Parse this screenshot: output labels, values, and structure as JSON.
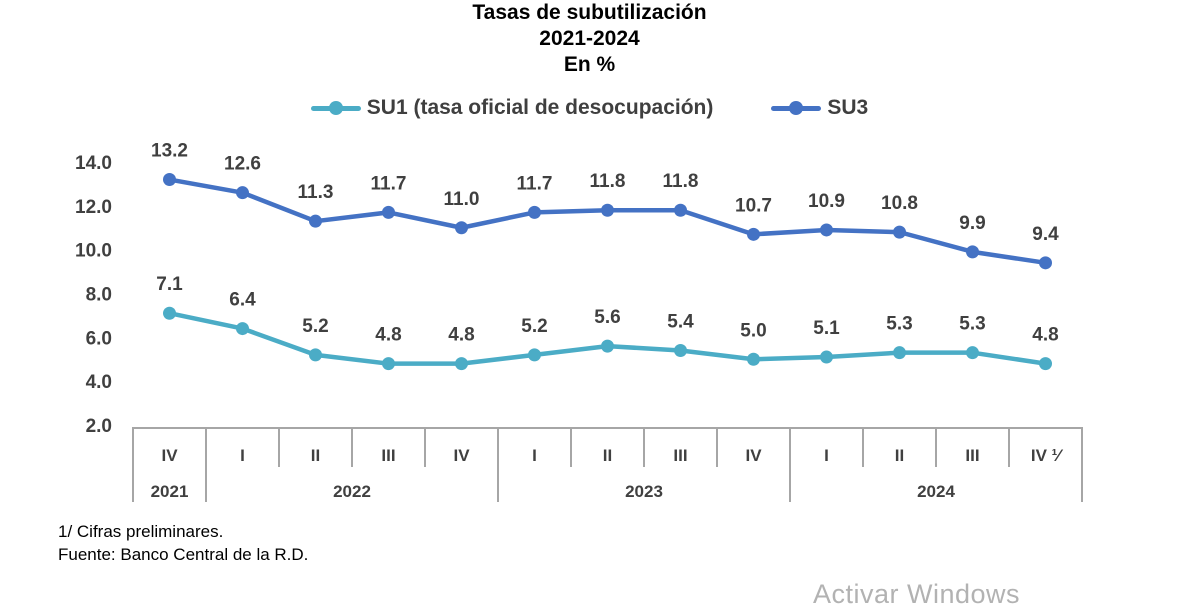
{
  "title": {
    "line1": "Tasas de subutilización",
    "line2": "2021-2024",
    "line3": "En %"
  },
  "legend": [
    {
      "label": "SU1 (tasa oficial de desocupación)",
      "color": "#4BACC6"
    },
    {
      "label": "SU3",
      "color": "#4472C4"
    }
  ],
  "chart_data": {
    "type": "line",
    "title": "Tasas de subutilización 2021-2024 En %",
    "categories": [
      "IV",
      "I",
      "II",
      "III",
      "IV",
      "I",
      "II",
      "III",
      "IV",
      "I",
      "II",
      "III",
      "IV ¹⁄"
    ],
    "year_groups": [
      {
        "label": "2021",
        "span": 1
      },
      {
        "label": "2022",
        "span": 4
      },
      {
        "label": "2023",
        "span": 4
      },
      {
        "label": "2024",
        "span": 4
      }
    ],
    "series": [
      {
        "name": "SU1 (tasa oficial de desocupación)",
        "color": "#4BACC6",
        "values": [
          7.1,
          6.4,
          5.2,
          4.8,
          4.8,
          5.2,
          5.6,
          5.4,
          5.0,
          5.1,
          5.3,
          5.3,
          4.8
        ]
      },
      {
        "name": "SU3",
        "color": "#4472C4",
        "values": [
          13.2,
          12.6,
          11.3,
          11.7,
          11.0,
          11.7,
          11.8,
          11.8,
          10.7,
          10.9,
          10.8,
          9.9,
          9.4
        ]
      }
    ],
    "yticks": [
      14.0,
      12.0,
      10.0,
      8.0,
      6.0,
      4.0,
      2.0
    ],
    "ylim": [
      2.0,
      14.0
    ],
    "grid": false,
    "legend_position": "top",
    "colors": {
      "label_text": "#404040",
      "table_border": "#A6A6A6"
    }
  },
  "footnotes": {
    "line1": "1/ Cifras preliminares.",
    "line2": "Fuente: Banco Central de la R.D."
  },
  "watermark": "Activar Windows"
}
